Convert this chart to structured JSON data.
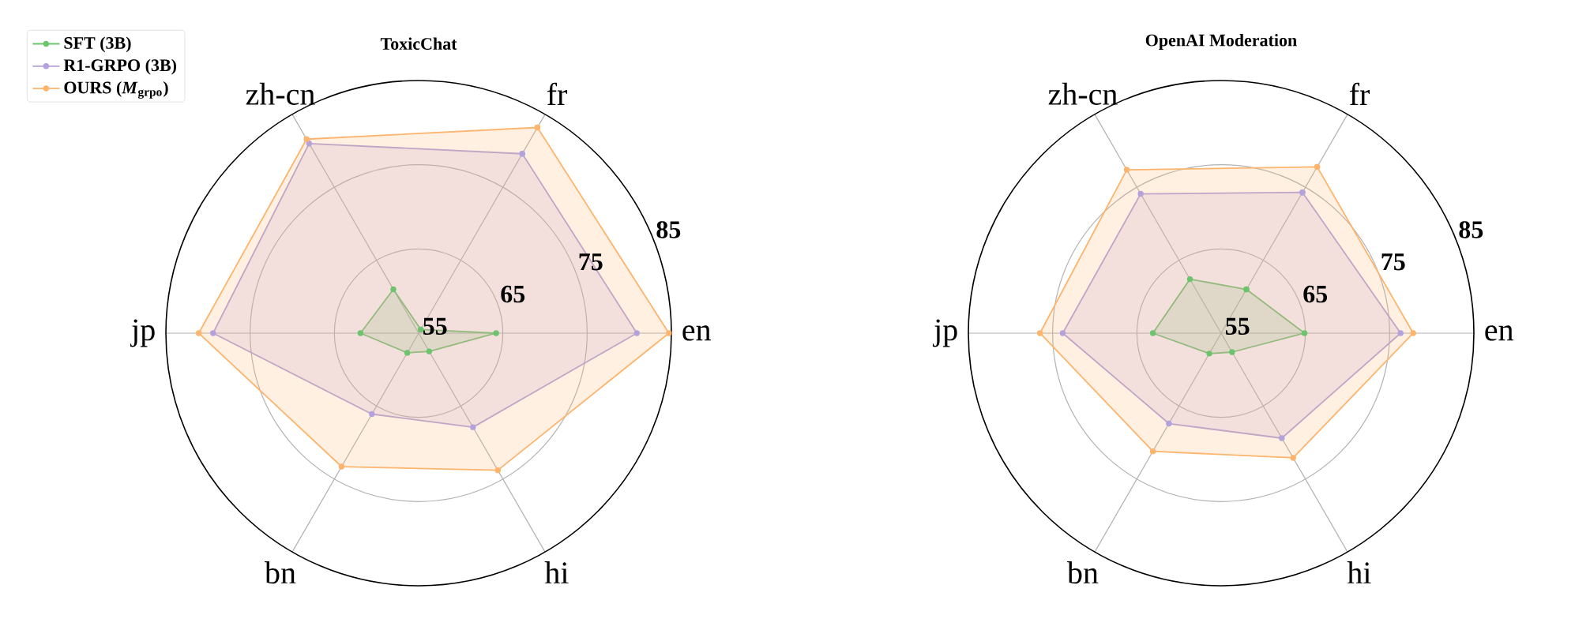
{
  "chart_data": [
    {
      "type": "radar",
      "title": "ToxicChat",
      "categories": [
        "fr",
        "en",
        "hi",
        "bn",
        "jp",
        "zh-cn"
      ],
      "ylim": [
        55,
        85
      ],
      "yticks": [
        55,
        65,
        75,
        85
      ],
      "grid": true,
      "legend": "top left",
      "marker": "circle",
      "line_style": "solid",
      "series": [
        {
          "name": "SFT (3B)",
          "color": "#6cc46c",
          "values": [
            55.5,
            64.2,
            57.5,
            57.7,
            61.9,
            61.0
          ]
        },
        {
          "name": "R1-GRPO (3B)",
          "color": "#b3a2dc",
          "values": [
            79.6,
            80.9,
            67.9,
            66.1,
            79.4,
            81.0
          ]
        },
        {
          "name": "OURS (*M*$_{grpo}$)",
          "color": "#fdb46c",
          "values": [
            83.2,
            84.7,
            73.8,
            73.3,
            81.1,
            81.6
          ]
        }
      ]
    },
    {
      "type": "radar",
      "title": "OpenAI Moderation",
      "categories": [
        "fr",
        "en",
        "hi",
        "bn",
        "jp",
        "zh-cn"
      ],
      "ylim": [
        55,
        85
      ],
      "yticks": [
        55,
        65,
        75,
        85
      ],
      "grid": true,
      "marker": "circle",
      "line_style": "solid",
      "series": [
        {
          "color": "#6cc46c",
          "values": [
            61.0,
            64.9,
            57.6,
            57.8,
            63.1,
            62.4
          ]
        },
        {
          "color": "#b3a2dc",
          "values": [
            74.3,
            76.3,
            69.4,
            67.4,
            73.8,
            74.1
          ]
        },
        {
          "color": "#fdb46c",
          "values": [
            77.8,
            77.8,
            72.1,
            71.2,
            76.5,
            77.4
          ]
        }
      ]
    }
  ]
}
